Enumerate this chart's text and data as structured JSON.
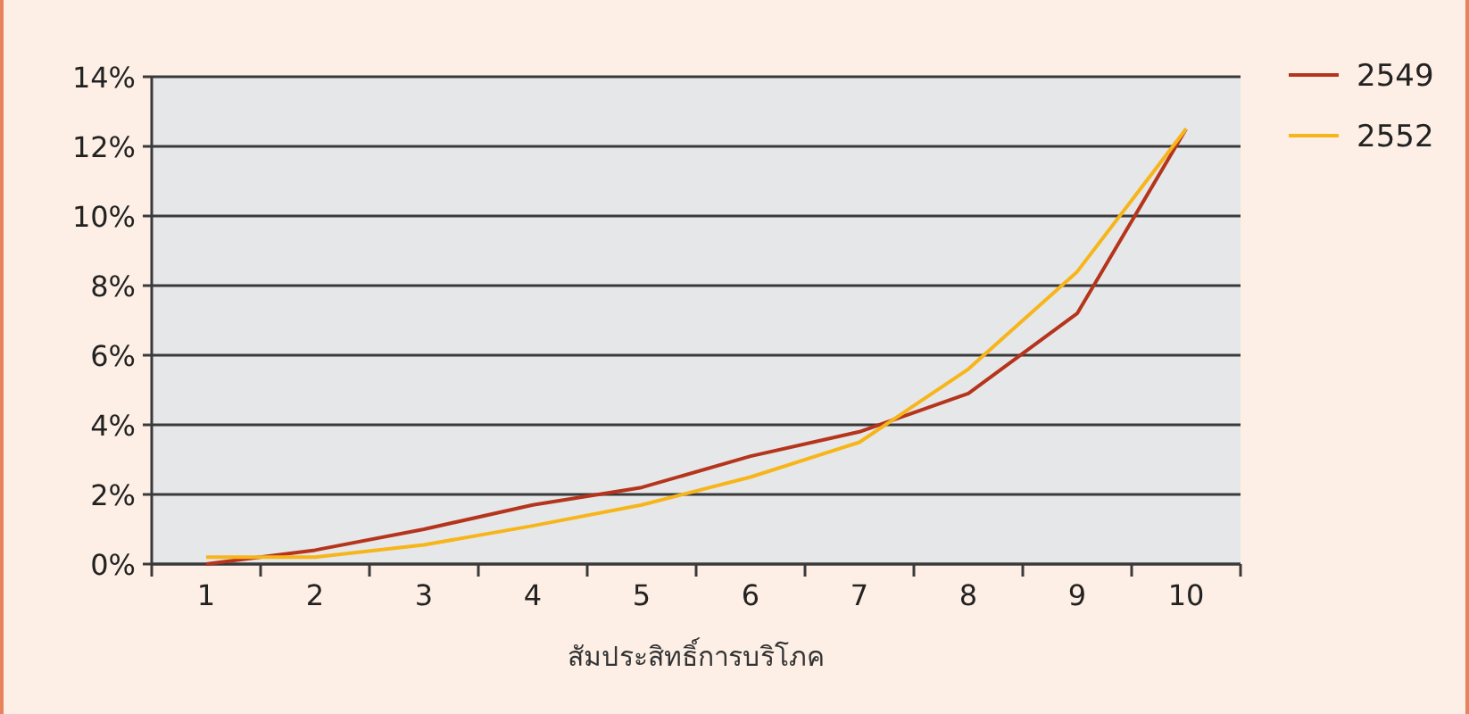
{
  "chart_data": {
    "type": "line",
    "xlabel": "สัมประสิทธิ์การบริโภค",
    "categories": [
      "1",
      "2",
      "3",
      "4",
      "5",
      "6",
      "7",
      "8",
      "9",
      "10"
    ],
    "series": [
      {
        "name": "2549",
        "color": "#b5341c",
        "values": [
          0.0,
          0.4,
          1.0,
          1.7,
          2.2,
          3.1,
          3.8,
          4.9,
          7.2,
          12.5
        ]
      },
      {
        "name": "2552",
        "color": "#f7b51a",
        "values": [
          0.2,
          0.2,
          0.55,
          1.1,
          1.7,
          2.5,
          3.5,
          5.6,
          8.4,
          12.5
        ]
      }
    ],
    "ylim": [
      0,
      14
    ],
    "yticks": [
      {
        "value": 0,
        "label": "0%"
      },
      {
        "value": 2,
        "label": "2%"
      },
      {
        "value": 4,
        "label": "4%"
      },
      {
        "value": 6,
        "label": "6%"
      },
      {
        "value": 8,
        "label": "8%"
      },
      {
        "value": 10,
        "label": "10%"
      },
      {
        "value": 12,
        "label": "12%"
      },
      {
        "value": 14,
        "label": "14%"
      }
    ],
    "grid": "y",
    "legend": "top right",
    "marker": "none",
    "line_style": "solid"
  }
}
